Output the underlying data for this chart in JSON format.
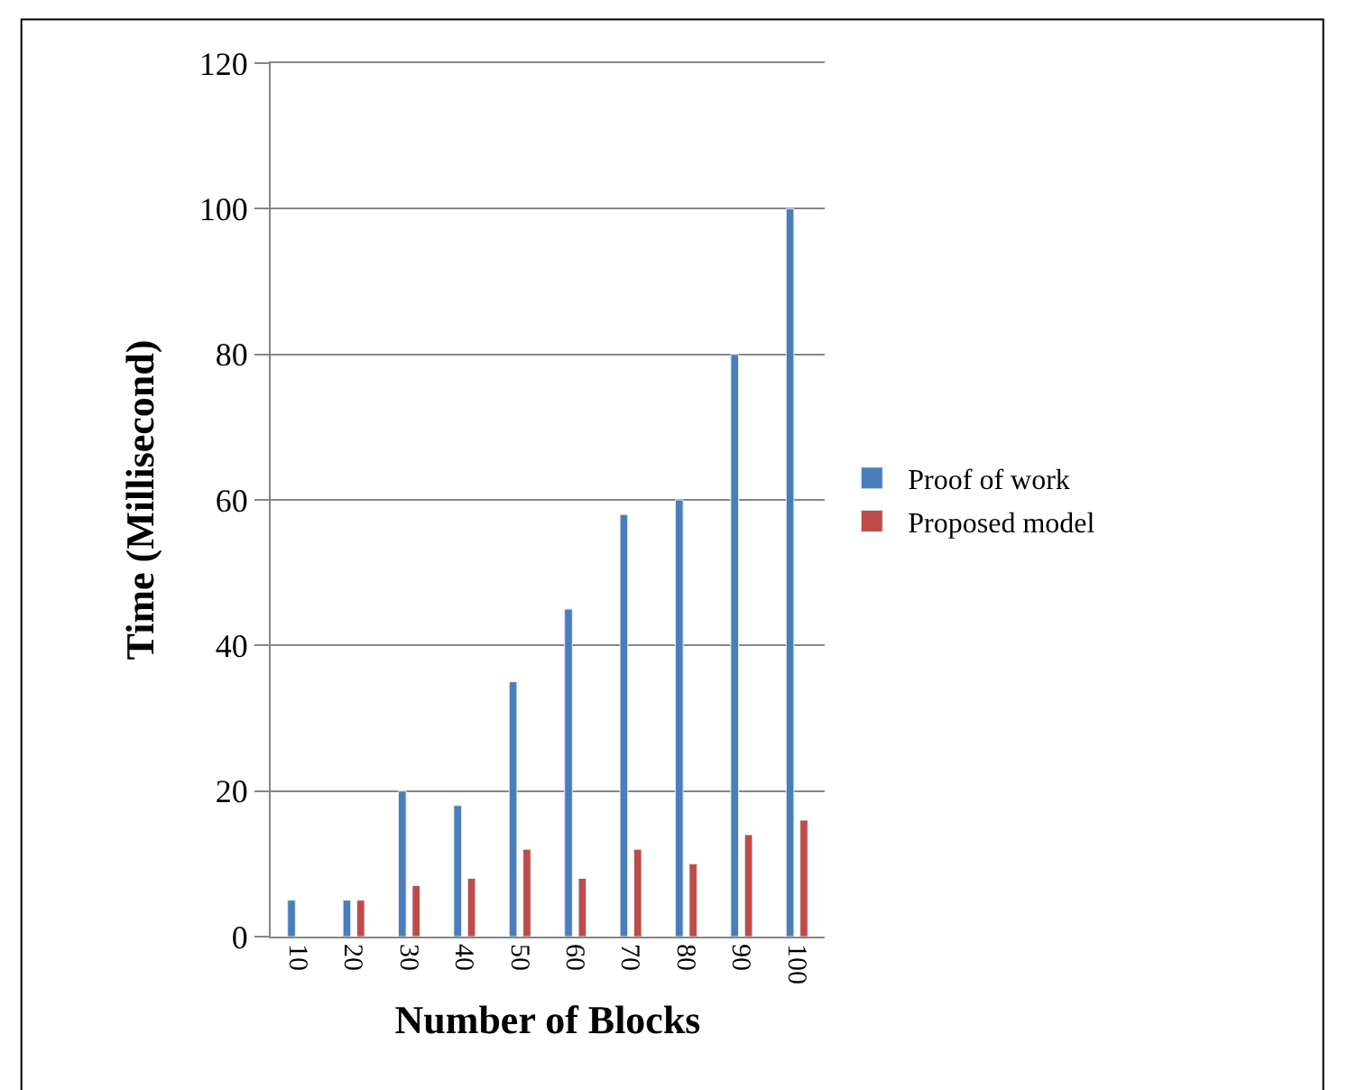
{
  "chart_data": {
    "type": "bar",
    "xlabel": "Number of Blocks",
    "ylabel": "Time (Millisecond)",
    "categories": [
      "10",
      "20",
      "30",
      "40",
      "50",
      "60",
      "70",
      "80",
      "90",
      "100"
    ],
    "series": [
      {
        "name": "Proof of work",
        "color": "#4a7ebb",
        "values": [
          5,
          5,
          20,
          18,
          35,
          45,
          58,
          60,
          80,
          100
        ]
      },
      {
        "name": "Proposed model",
        "color": "#be4b48",
        "values": [
          null,
          5,
          7,
          8,
          12,
          8,
          12,
          10,
          14,
          16
        ]
      }
    ],
    "ylim": [
      0,
      120
    ],
    "yticks": [
      0,
      20,
      40,
      60,
      80,
      100,
      120
    ],
    "grid": "y",
    "legend": "right"
  }
}
